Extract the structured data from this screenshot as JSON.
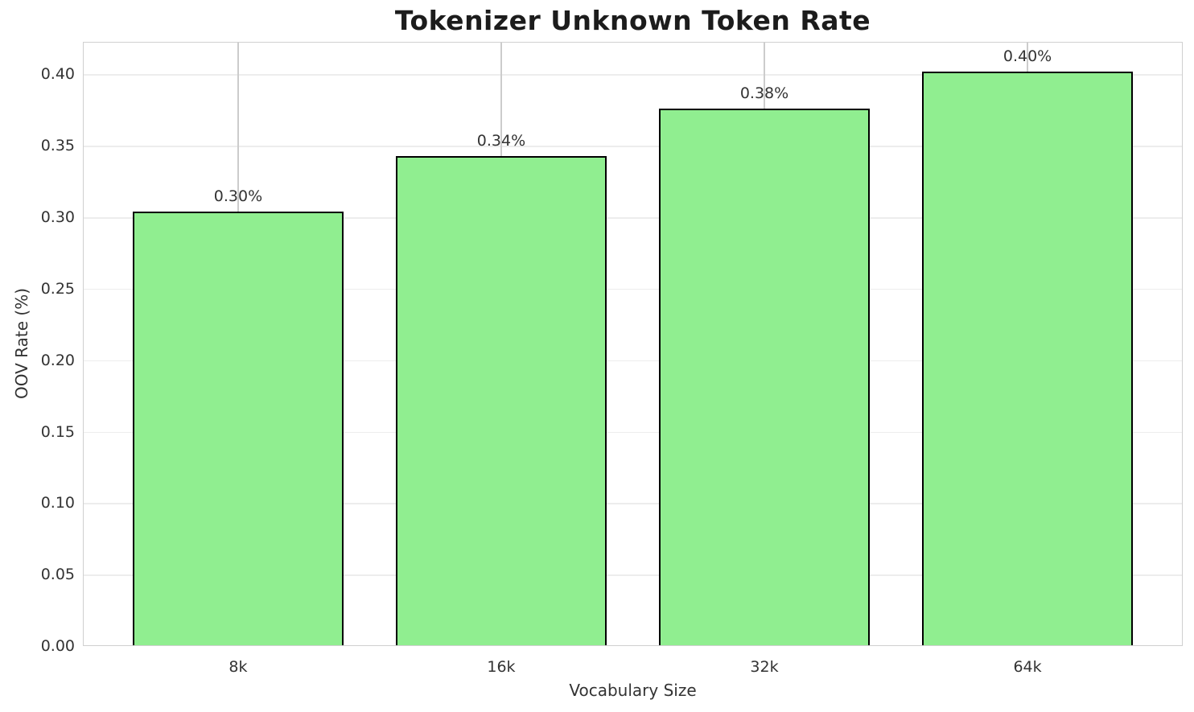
{
  "title": "Tokenizer Unknown Token Rate",
  "chart_data": {
    "type": "bar",
    "title": "Tokenizer Unknown Token Rate",
    "xlabel": "Vocabulary Size",
    "ylabel": "OOV Rate (%)",
    "categories": [
      "8k",
      "16k",
      "32k",
      "64k"
    ],
    "values": [
      0.304,
      0.343,
      0.376,
      0.402
    ],
    "bar_labels": [
      "0.30%",
      "0.34%",
      "0.38%",
      "0.40%"
    ],
    "yticks": [
      0.0,
      0.05,
      0.1,
      0.15,
      0.2,
      0.25,
      0.3,
      0.35,
      0.4
    ],
    "ytick_labels": [
      "0.00",
      "0.05",
      "0.10",
      "0.15",
      "0.20",
      "0.25",
      "0.30",
      "0.35",
      "0.40"
    ],
    "ylim": [
      0,
      0.4228
    ],
    "grid": true,
    "legend": null,
    "colors": {
      "bar_fill": "#90EE90",
      "bar_edge": "#000000",
      "hgrid": "#ededed",
      "vgrid": "#cccccc",
      "spine": "#d0d0d0",
      "text": "#333333",
      "title_text": "#1c1c1c",
      "background": "#ffffff"
    }
  }
}
